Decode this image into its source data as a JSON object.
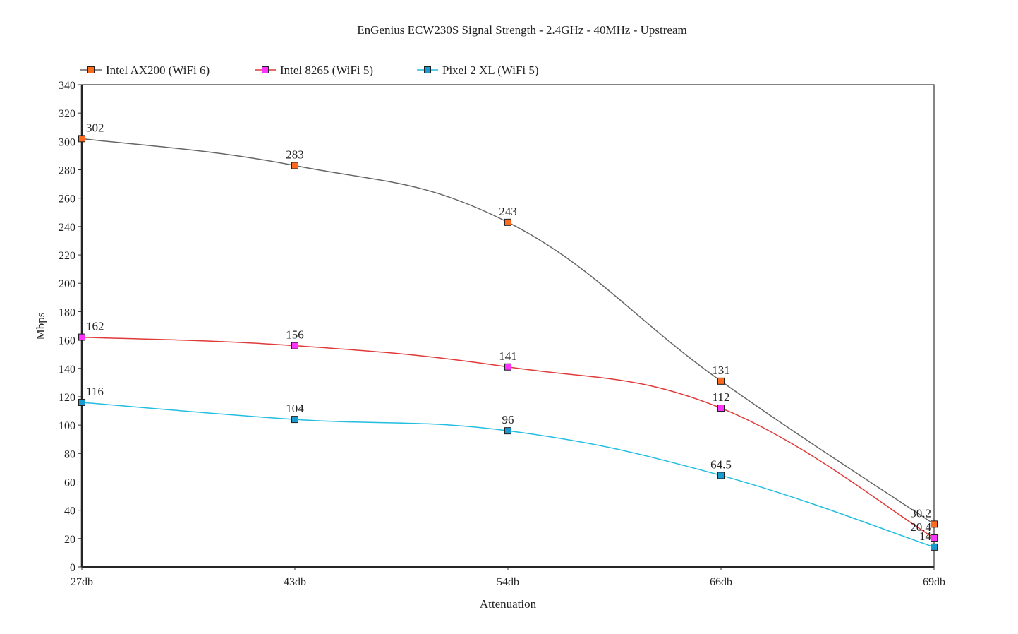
{
  "chart_data": {
    "type": "line",
    "title": "EnGenius ECW230S Signal Strength - 2.4GHz - 40MHz - Upstream",
    "xlabel": "Attenuation",
    "ylabel": "Mbps",
    "categories": [
      "27db",
      "43db",
      "54db",
      "66db",
      "69db"
    ],
    "ylim": [
      0,
      340
    ],
    "yticks": [
      0,
      20,
      40,
      60,
      80,
      100,
      120,
      140,
      160,
      180,
      200,
      220,
      240,
      260,
      280,
      300,
      320,
      340
    ],
    "grid": false,
    "legend_position": "top-left",
    "series": [
      {
        "name": "Intel AX200 (WiFi 6)",
        "values": [
          302,
          283,
          243,
          131,
          30.2
        ],
        "labels": [
          "302",
          "283",
          "243",
          "131",
          "30.2"
        ],
        "line_color": "#666666",
        "marker_color": "#ff6a1f"
      },
      {
        "name": "Intel 8265 (WiFi 5)",
        "values": [
          162,
          156,
          141,
          112,
          20.4
        ],
        "labels": [
          "162",
          "156",
          "141",
          "112",
          "20.4"
        ],
        "line_color": "#e03a3a",
        "marker_color": "#ff33ff"
      },
      {
        "name": "Pixel 2 XL (WiFi 5)",
        "values": [
          116,
          104,
          96,
          64.5,
          14
        ],
        "labels": [
          "116",
          "104",
          "96",
          "64.5",
          "14"
        ],
        "line_color": "#22bde0",
        "marker_color": "#1a9bd0"
      }
    ]
  }
}
